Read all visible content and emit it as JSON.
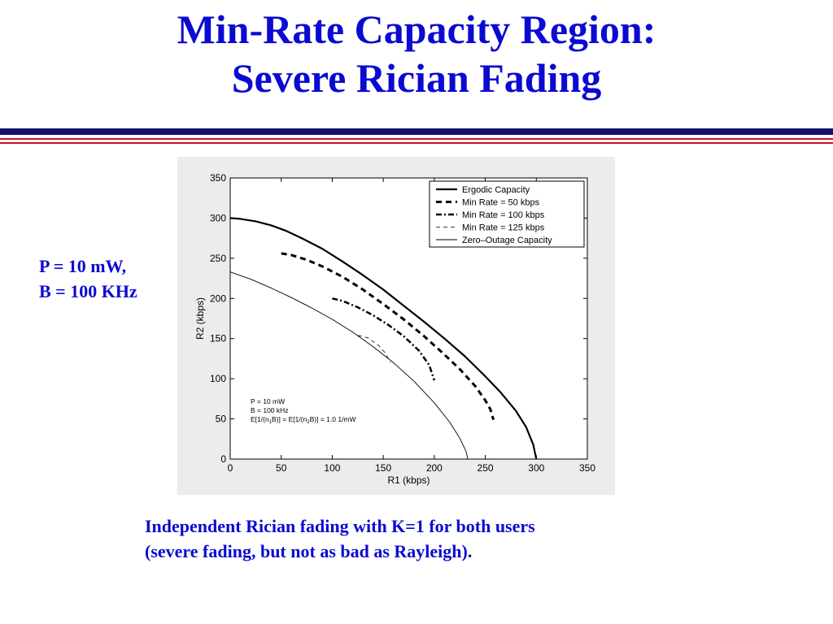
{
  "slide": {
    "title_line1": "Min-Rate Capacity Region:",
    "title_line2": "Severe Rician Fading",
    "params_line1": "P = 10 mW,",
    "params_line2": "B = 100 KHz",
    "caption_line1": "Independent Rician fading with K=1 for both users",
    "caption_line2": "(severe fading, but not as bad as Rayleigh)."
  },
  "colors": {
    "title": "#0a0ad2",
    "rule_navy": "#14146e",
    "rule_red": "#c8102e",
    "plot_background": "#ececec"
  },
  "chart_data": {
    "type": "line",
    "title": "",
    "xlabel": "R1 (kbps)",
    "ylabel": "R2 (kbps)",
    "xlim": [
      0,
      350
    ],
    "ylim": [
      0,
      350
    ],
    "xticks": [
      0,
      50,
      100,
      150,
      200,
      250,
      300,
      350
    ],
    "yticks": [
      0,
      50,
      100,
      150,
      200,
      250,
      300,
      350
    ],
    "grid": false,
    "legend_position": "top-right",
    "annotations": {
      "line1": "P = 10 mW",
      "line2": "B = 100 kHz",
      "line3_a": "E[1/(n",
      "line3_sub1": "1",
      "line3_b": "B)] = E[1/(n",
      "line3_sub2": "2",
      "line3_c": "B)] = 1.0 1/mW"
    },
    "series": [
      {
        "name": "Ergodic Capacity",
        "style": "solid-thick",
        "x": [
          0,
          10,
          25,
          40,
          55,
          70,
          90,
          110,
          130,
          150,
          170,
          190,
          210,
          230,
          250,
          265,
          280,
          290,
          297,
          300
        ],
        "y": [
          300,
          299,
          296,
          291,
          284,
          275,
          262,
          246,
          229,
          211,
          191,
          171,
          150,
          128,
          103,
          83,
          60,
          40,
          18,
          0
        ]
      },
      {
        "name": "Min Rate = 50 kbps",
        "style": "dashed-thick",
        "x": [
          50,
          60,
          75,
          90,
          110,
          130,
          150,
          170,
          190,
          210,
          225,
          240,
          250,
          255,
          258
        ],
        "y": [
          256,
          254,
          248,
          240,
          227,
          211,
          193,
          174,
          153,
          130,
          112,
          91,
          73,
          62,
          49
        ]
      },
      {
        "name": "Min Rate = 100 kbps",
        "style": "dashdot-thick",
        "x": [
          100,
          110,
          125,
          140,
          155,
          170,
          185,
          195,
          200
        ],
        "y": [
          200,
          197,
          189,
          179,
          167,
          153,
          135,
          117,
          98
        ]
      },
      {
        "name": "Min Rate = 125 kbps",
        "style": "dashed-thin",
        "x": [
          125,
          135,
          145,
          152,
          157
        ],
        "y": [
          154,
          151,
          142,
          132,
          120
        ]
      },
      {
        "name": "Zero–Outage Capacity",
        "style": "solid-thin",
        "x": [
          0,
          20,
          40,
          60,
          80,
          100,
          120,
          140,
          160,
          180,
          200,
          215,
          225,
          231,
          233
        ],
        "y": [
          233,
          224,
          213,
          201,
          188,
          174,
          158,
          140,
          120,
          97,
          70,
          46,
          26,
          10,
          0
        ]
      }
    ]
  }
}
